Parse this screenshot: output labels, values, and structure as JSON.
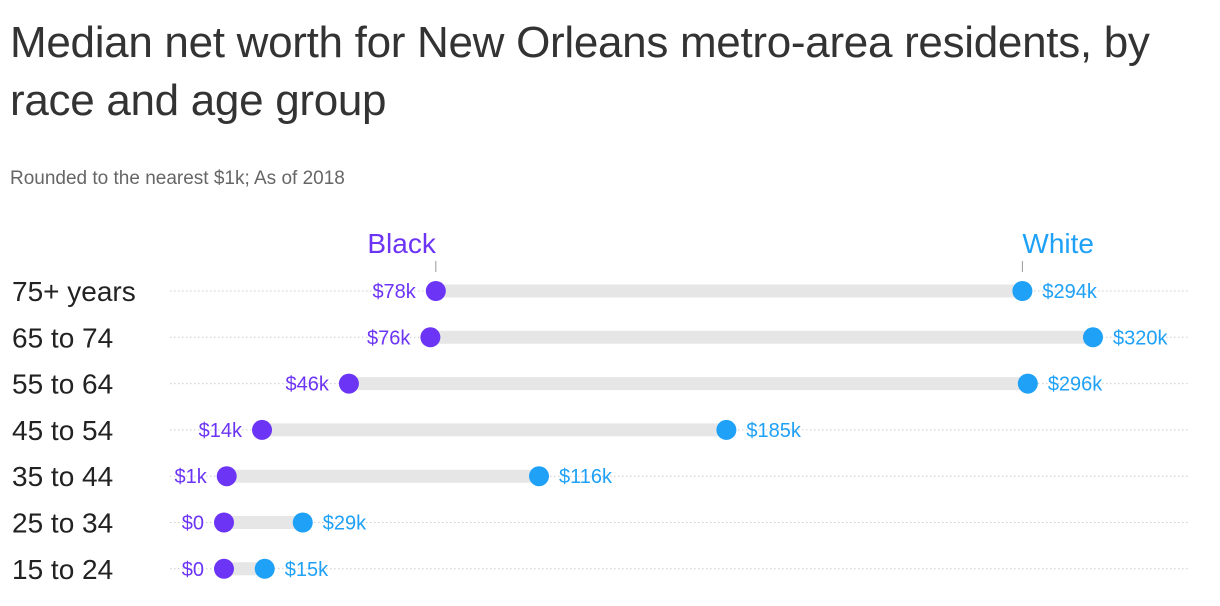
{
  "title": "Median net worth for New Orleans metro-area residents, by race and age group",
  "subtitle": "Rounded to the nearest $1k; As of 2018",
  "colors": {
    "black": "#6c34f5",
    "white": "#1ea1f7",
    "bar": "#e6e6e6",
    "gridline": "#cccccc"
  },
  "chart_data": {
    "type": "dumbbell",
    "categories": [
      "75+ years",
      "65 to 74",
      "55 to 64",
      "45 to 54",
      "35 to 44",
      "25 to 34",
      "15 to 24"
    ],
    "series": [
      {
        "name": "Black",
        "values": [
          78,
          76,
          46,
          14,
          1,
          0,
          0
        ],
        "labels": [
          "$78k",
          "$76k",
          "$46k",
          "$14k",
          "$1k",
          "$0",
          "$0"
        ]
      },
      {
        "name": "White",
        "values": [
          294,
          320,
          296,
          185,
          116,
          29,
          15
        ],
        "labels": [
          "$294k",
          "$320k",
          "$296k",
          "$185k",
          "$116k",
          "$29k",
          "$15k"
        ]
      }
    ],
    "unit": "thousands of dollars",
    "xlim": [
      0,
      320
    ],
    "grid": true
  }
}
